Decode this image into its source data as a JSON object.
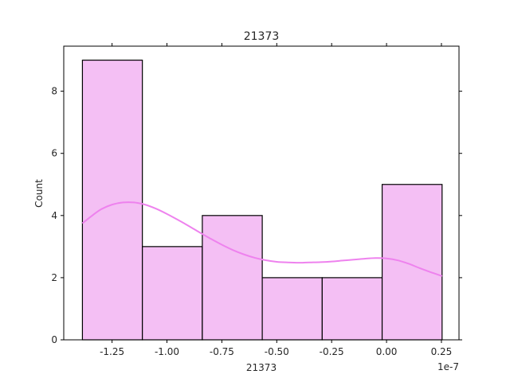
{
  "chart_data": {
    "type": "bar",
    "subtype": "histogram-with-kde",
    "title": "21373",
    "xlabel": "21373",
    "ylabel": "Count",
    "x_offset_text": "1e-7",
    "xlim": [
      -1.47,
      0.33
    ],
    "ylim": [
      0,
      9.45
    ],
    "xticks": [
      -1.25,
      -1.0,
      -0.75,
      -0.5,
      -0.25,
      0.0,
      0.25
    ],
    "xtick_labels": [
      "-1.25",
      "-1.00",
      "-0.75",
      "-0.50",
      "-0.25",
      "0.00",
      "0.25"
    ],
    "yticks": [
      0,
      2,
      4,
      6,
      8
    ],
    "ytick_labels": [
      "0",
      "2",
      "4",
      "6",
      "8"
    ],
    "bins": [
      {
        "x0": -1.385,
        "x1": -1.112,
        "count": 9
      },
      {
        "x0": -1.112,
        "x1": -0.839,
        "count": 3
      },
      {
        "x0": -0.839,
        "x1": -0.566,
        "count": 4
      },
      {
        "x0": -0.566,
        "x1": -0.293,
        "count": 2
      },
      {
        "x0": -0.293,
        "x1": -0.02,
        "count": 2
      },
      {
        "x0": -0.02,
        "x1": 0.253,
        "count": 5
      }
    ],
    "kde": {
      "x": [
        -1.385,
        -1.34,
        -1.3,
        -1.25,
        -1.2,
        -1.15,
        -1.1,
        -1.05,
        -1.0,
        -0.95,
        -0.9,
        -0.85,
        -0.8,
        -0.75,
        -0.7,
        -0.65,
        -0.6,
        -0.55,
        -0.5,
        -0.45,
        -0.4,
        -0.35,
        -0.3,
        -0.25,
        -0.2,
        -0.15,
        -0.1,
        -0.05,
        0.0,
        0.05,
        0.1,
        0.15,
        0.2,
        0.253
      ],
      "y": [
        3.75,
        4.0,
        4.2,
        4.35,
        4.42,
        4.42,
        4.35,
        4.22,
        4.05,
        3.86,
        3.66,
        3.45,
        3.25,
        3.06,
        2.89,
        2.75,
        2.64,
        2.56,
        2.51,
        2.49,
        2.48,
        2.49,
        2.5,
        2.52,
        2.55,
        2.58,
        2.61,
        2.63,
        2.62,
        2.56,
        2.45,
        2.31,
        2.18,
        2.05
      ]
    },
    "grid": false,
    "colors": {
      "bar_fill": "#f4bff4",
      "bar_edge": "#000000",
      "kde_line": "#ee82ee",
      "axis": "#000000",
      "text": "#262626"
    }
  }
}
